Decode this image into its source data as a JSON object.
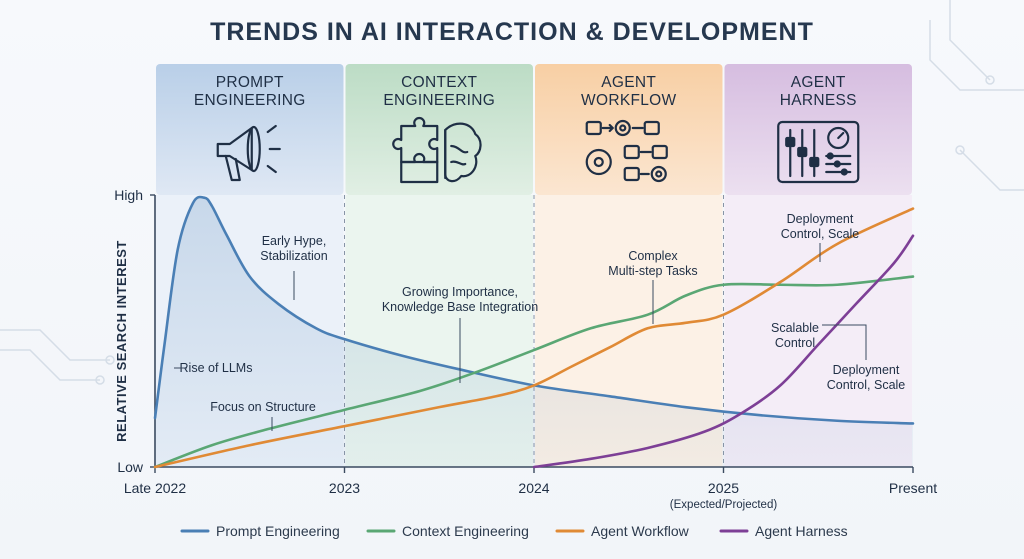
{
  "title": "TRENDS IN AI INTERACTION & DEVELOPMENT",
  "colors": {
    "prompt": "#4a7fb5",
    "context": "#5aa774",
    "agent_workflow": "#e08a35",
    "agent_harness": "#7d3f96",
    "band_prompt": "#c9daef",
    "band_context": "#cfe8d5",
    "band_workflow": "#fbdcbc",
    "band_harness": "#e4d0ea"
  },
  "chart_data": {
    "type": "line",
    "title": "TRENDS IN AI INTERACTION & DEVELOPMENT",
    "ylabel": "RELATIVE SEARCH INTEREST",
    "xlabel": "",
    "x_ticks": [
      {
        "label": "Late 2022",
        "x": 0
      },
      {
        "label": "2023",
        "x": 1
      },
      {
        "label": "2024",
        "x": 2
      },
      {
        "label": "2025",
        "x": 3,
        "sublabel": "(Expected/Projected)"
      },
      {
        "label": "Present",
        "x": 4
      }
    ],
    "xlim": [
      0,
      4
    ],
    "ylim": [
      0,
      100
    ],
    "y_ticks": [
      {
        "label": "Low",
        "y": 0
      },
      {
        "label": "High",
        "y": 100
      }
    ],
    "grid": false,
    "legend": "bottom",
    "phases": [
      {
        "label": "PROMPT\nENGINEERING",
        "icon": "megaphone-icon",
        "start": 0,
        "end": 1
      },
      {
        "label": "CONTEXT\nENGINEERING",
        "icon": "puzzle-brain-icon",
        "start": 1,
        "end": 2
      },
      {
        "label": "AGENT\nWORKFLOW",
        "icon": "workflow-gears-icon",
        "start": 2,
        "end": 3
      },
      {
        "label": "AGENT\nHARNESS",
        "icon": "control-panel-icon",
        "start": 3,
        "end": 4
      }
    ],
    "series": [
      {
        "name": "Prompt Engineering",
        "color_key": "prompt",
        "x": [
          0,
          0.05,
          0.12,
          0.2,
          0.26,
          0.3,
          0.38,
          0.5,
          0.65,
          0.85,
          1.0,
          1.3,
          1.6,
          2.0,
          2.4,
          2.8,
          3.2,
          3.6,
          4.0
        ],
        "y": [
          18,
          45,
          80,
          97,
          99,
          96,
          85,
          70,
          60,
          51,
          47,
          41,
          36,
          30,
          26,
          22,
          19,
          17,
          16
        ]
      },
      {
        "name": "Context Engineering",
        "color_key": "context",
        "x": [
          0,
          0.3,
          0.6,
          1.0,
          1.4,
          1.7,
          2.0,
          2.3,
          2.6,
          2.8,
          3.0,
          3.3,
          3.6,
          4.0
        ],
        "y": [
          0,
          8,
          14,
          21,
          28,
          35,
          43,
          51,
          56,
          63,
          67,
          67,
          67,
          70
        ]
      },
      {
        "name": "Agent Workflow",
        "color_key": "agent_workflow",
        "x": [
          0,
          0.5,
          1.0,
          1.5,
          1.8,
          2.0,
          2.2,
          2.4,
          2.6,
          2.8,
          3.0,
          3.3,
          3.6,
          4.0
        ],
        "y": [
          0,
          8,
          15,
          22,
          26,
          30,
          37,
          44,
          51,
          53,
          56,
          68,
          82,
          95
        ]
      },
      {
        "name": "Agent Harness",
        "color_key": "agent_harness",
        "x": [
          2.0,
          2.3,
          2.6,
          2.9,
          3.1,
          3.3,
          3.5,
          3.7,
          3.9,
          4.0
        ],
        "y": [
          0,
          3,
          7,
          13,
          20,
          30,
          45,
          60,
          75,
          85
        ]
      }
    ],
    "annotations": [
      {
        "text": "Early Hype,\nStabilization",
        "series": "Prompt Engineering"
      },
      {
        "text": "Rise of LLMs",
        "series": "Prompt Engineering"
      },
      {
        "text": "Focus on Structure",
        "series": "Context Engineering"
      },
      {
        "text": "Growing Importance,\nKnowledge Base Integration",
        "series": "Context Engineering"
      },
      {
        "text": "Complex\nMulti-step Tasks",
        "series": "Agent Workflow"
      },
      {
        "text": "Deployment\nControl, Scale",
        "series": "Agent Workflow"
      },
      {
        "text": "Scalable\nControl",
        "series": "Agent Harness"
      },
      {
        "text": "Deployment\nControl, Scale",
        "series": "Agent Harness"
      }
    ]
  }
}
